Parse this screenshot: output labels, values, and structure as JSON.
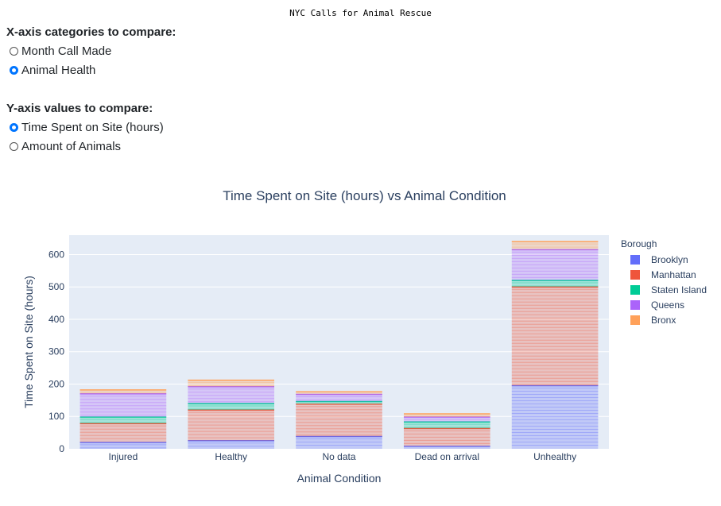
{
  "page_title": "NYC Calls for Animal Rescue",
  "x_control": {
    "heading": "X-axis categories to compare:",
    "options": [
      {
        "label": "Month Call Made",
        "checked": false
      },
      {
        "label": "Animal Health",
        "checked": true
      }
    ]
  },
  "y_control": {
    "heading": "Y-axis values to compare:",
    "options": [
      {
        "label": "Time Spent on Site (hours)",
        "checked": true
      },
      {
        "label": "Amount of Animals",
        "checked": false
      }
    ]
  },
  "colors": {
    "Brooklyn": "#636efa",
    "Manhattan": "#ef553b",
    "Staten Island": "#00cc96",
    "Queens": "#ab63fa",
    "Bronx": "#ffa15a",
    "plot_bg": "#e5ecf6"
  },
  "chart_data": {
    "type": "bar",
    "barmode": "stack",
    "title": "Time Spent on Site (hours) vs Animal Condition",
    "xlabel": "Animal Condition",
    "ylabel": "Time Spent on Site (hours)",
    "ylim": [
      0,
      660
    ],
    "yticks": [
      0,
      100,
      200,
      300,
      400,
      500,
      600
    ],
    "categories": [
      "Injured",
      "Healthy",
      "No data",
      "Dead on arrival",
      "Unhealthy"
    ],
    "legend_title": "Borough",
    "legend_position": "right",
    "series": [
      {
        "name": "Brooklyn",
        "values": [
          20,
          25,
          38,
          8,
          195
        ]
      },
      {
        "name": "Manhattan",
        "values": [
          58,
          95,
          100,
          55,
          305
        ]
      },
      {
        "name": "Staten Island",
        "values": [
          20,
          20,
          8,
          20,
          20
        ]
      },
      {
        "name": "Queens",
        "values": [
          72,
          52,
          22,
          15,
          95
        ]
      },
      {
        "name": "Bronx",
        "values": [
          12,
          20,
          8,
          10,
          25
        ]
      }
    ]
  }
}
